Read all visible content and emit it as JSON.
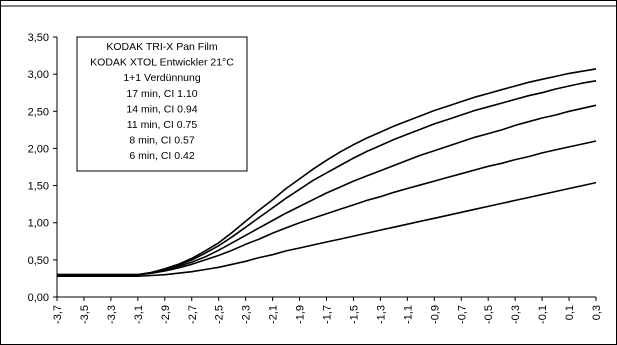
{
  "chart_data": {
    "type": "line",
    "title": "",
    "xlabel": "",
    "ylabel": "",
    "x": [
      -3.7,
      -3.6,
      -3.5,
      -3.4,
      -3.3,
      -3.2,
      -3.1,
      -3.0,
      -2.9,
      -2.8,
      -2.7,
      -2.6,
      -2.5,
      -2.4,
      -2.3,
      -2.2,
      -2.1,
      -2.0,
      -1.9,
      -1.8,
      -1.7,
      -1.6,
      -1.5,
      -1.4,
      -1.3,
      -1.2,
      -1.1,
      -1.0,
      -0.9,
      -0.8,
      -0.7,
      -0.6,
      -0.5,
      -0.4,
      -0.3,
      -0.2,
      -0.1,
      0.0,
      0.1,
      0.2,
      0.3
    ],
    "xlim": [
      -3.7,
      0.3
    ],
    "x_tick_labels": [
      "-3,7",
      "-3,5",
      "-3,3",
      "-3,1",
      "-2,9",
      "-2,7",
      "-2,5",
      "-2,3",
      "-2,1",
      "-1,9",
      "-1,7",
      "-1,5",
      "-1,3",
      "-1,1",
      "-0,9",
      "-0,7",
      "-0,5",
      "-0,3",
      "-0,1",
      "0,1",
      "0,3"
    ],
    "ylim": [
      0,
      3.5
    ],
    "y_tick_labels": [
      "0,00",
      "0,50",
      "1,00",
      "1,50",
      "2,00",
      "2,50",
      "3,00",
      "3,50"
    ],
    "grid": false,
    "series": [
      {
        "name": "17 min, CI 1.10",
        "values": [
          0.3,
          0.3,
          0.3,
          0.3,
          0.3,
          0.3,
          0.3,
          0.33,
          0.38,
          0.44,
          0.52,
          0.62,
          0.73,
          0.87,
          1.02,
          1.17,
          1.31,
          1.46,
          1.59,
          1.72,
          1.84,
          1.95,
          2.05,
          2.14,
          2.22,
          2.3,
          2.37,
          2.44,
          2.51,
          2.57,
          2.63,
          2.69,
          2.74,
          2.79,
          2.84,
          2.89,
          2.93,
          2.97,
          3.01,
          3.04,
          3.07
        ]
      },
      {
        "name": "14 min, CI 0.94",
        "values": [
          0.3,
          0.3,
          0.3,
          0.3,
          0.3,
          0.3,
          0.3,
          0.33,
          0.37,
          0.43,
          0.5,
          0.59,
          0.69,
          0.81,
          0.94,
          1.07,
          1.2,
          1.33,
          1.45,
          1.57,
          1.67,
          1.77,
          1.87,
          1.96,
          2.04,
          2.12,
          2.19,
          2.26,
          2.33,
          2.39,
          2.45,
          2.51,
          2.56,
          2.61,
          2.66,
          2.71,
          2.75,
          2.8,
          2.84,
          2.88,
          2.91
        ]
      },
      {
        "name": "11 min, CI 0.75",
        "values": [
          0.3,
          0.3,
          0.3,
          0.3,
          0.3,
          0.3,
          0.3,
          0.32,
          0.36,
          0.41,
          0.47,
          0.54,
          0.63,
          0.73,
          0.83,
          0.93,
          1.03,
          1.13,
          1.22,
          1.31,
          1.4,
          1.48,
          1.56,
          1.63,
          1.7,
          1.77,
          1.84,
          1.91,
          1.97,
          2.03,
          2.09,
          2.15,
          2.2,
          2.25,
          2.31,
          2.36,
          2.41,
          2.45,
          2.5,
          2.54,
          2.58
        ]
      },
      {
        "name": "8 min, CI 0.57",
        "values": [
          0.3,
          0.3,
          0.3,
          0.3,
          0.3,
          0.3,
          0.3,
          0.32,
          0.35,
          0.39,
          0.44,
          0.5,
          0.56,
          0.63,
          0.71,
          0.78,
          0.86,
          0.93,
          1.0,
          1.06,
          1.12,
          1.18,
          1.24,
          1.3,
          1.35,
          1.41,
          1.46,
          1.51,
          1.56,
          1.61,
          1.66,
          1.71,
          1.76,
          1.8,
          1.85,
          1.89,
          1.94,
          1.98,
          2.02,
          2.06,
          2.1
        ]
      },
      {
        "name": "6 min, CI 0.42",
        "values": [
          0.28,
          0.28,
          0.28,
          0.28,
          0.28,
          0.28,
          0.28,
          0.29,
          0.3,
          0.32,
          0.34,
          0.37,
          0.4,
          0.44,
          0.48,
          0.53,
          0.57,
          0.62,
          0.66,
          0.7,
          0.74,
          0.78,
          0.82,
          0.86,
          0.9,
          0.94,
          0.98,
          1.02,
          1.06,
          1.1,
          1.14,
          1.18,
          1.22,
          1.26,
          1.3,
          1.34,
          1.38,
          1.42,
          1.46,
          1.5,
          1.54
        ]
      }
    ],
    "legend": {
      "placement": "top-left",
      "lines": [
        "KODAK TRI-X Pan Film",
        "KODAK XTOL Entwickler 21°C",
        "1+1 Verdünnung",
        "17 min, CI 1.10",
        "14 min, CI 0.94",
        "11 min, CI 0.75",
        "8 min, CI 0.57",
        "6 min, CI 0.42"
      ]
    },
    "colors": {
      "line": "#000000",
      "background": "#ffffff"
    }
  }
}
